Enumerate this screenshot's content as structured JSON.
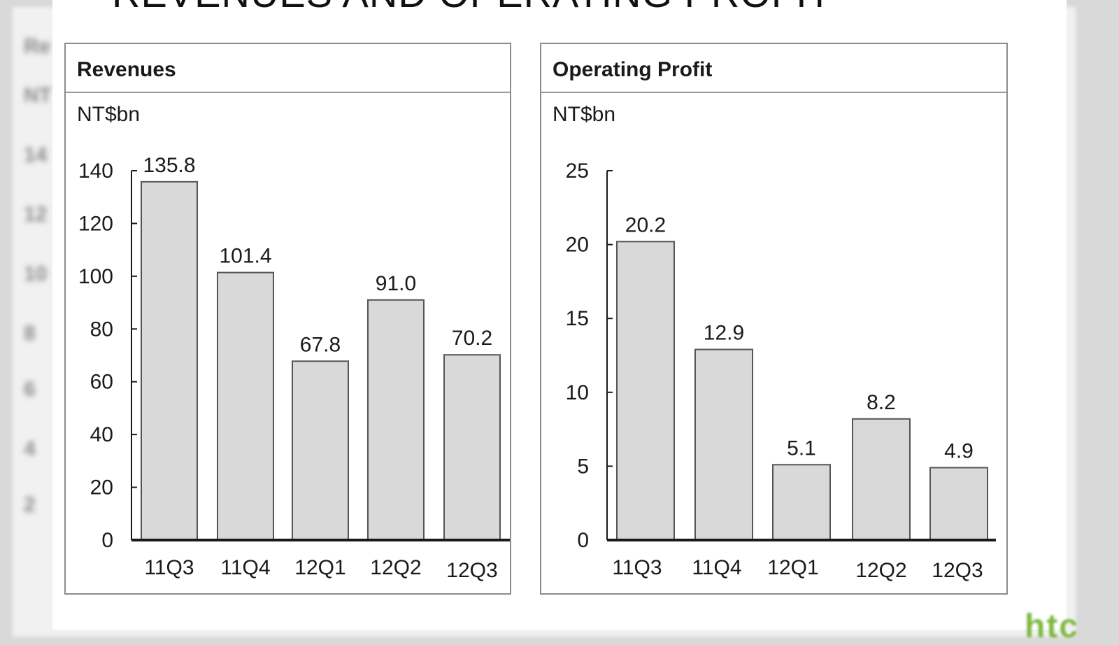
{
  "slide": {
    "title": "REVENUES AND OPERATING PROFIT",
    "logo_text": "htc"
  },
  "panels": [
    {
      "title": "Revenues",
      "unit": "NT$bn"
    },
    {
      "title": "Operating Profit",
      "unit": "NT$bn"
    }
  ],
  "colors": {
    "bar_fill": "#d9d9d9",
    "bar_stroke": "#555555",
    "axis": "#1a1a1a",
    "logo": "#7fb843"
  },
  "chart_data": [
    {
      "type": "bar",
      "title": "Revenues",
      "ylabel": "NT$bn",
      "categories": [
        "11Q3",
        "11Q4",
        "12Q1",
        "12Q2",
        "12Q3"
      ],
      "values": [
        135.8,
        101.4,
        67.8,
        91.0,
        70.2
      ],
      "value_labels": [
        "135.8",
        "101.4",
        "67.8",
        "91.0",
        "70.2"
      ],
      "ylim": [
        0,
        140
      ],
      "yticks": [
        0,
        20,
        40,
        60,
        80,
        100,
        120,
        140
      ],
      "grid": false,
      "legend": "none"
    },
    {
      "type": "bar",
      "title": "Operating Profit",
      "ylabel": "NT$bn",
      "categories": [
        "11Q3",
        "11Q4",
        "12Q1",
        "12Q2",
        "12Q3"
      ],
      "values": [
        20.2,
        12.9,
        5.1,
        8.2,
        4.9
      ],
      "value_labels": [
        "20.2",
        "12.9",
        "5.1",
        "8.2",
        "4.9"
      ],
      "ylim": [
        0,
        25
      ],
      "yticks": [
        0,
        5,
        10,
        15,
        20,
        25
      ],
      "grid": false,
      "legend": "none"
    }
  ]
}
